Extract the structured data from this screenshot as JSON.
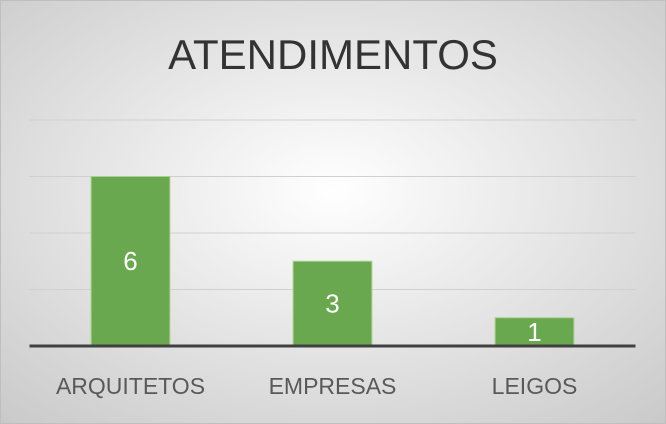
{
  "chart_data": {
    "type": "bar",
    "title": "ATENDIMENTOS",
    "categories": [
      "ARQUITETOS",
      "EMPRESAS",
      "LEIGOS"
    ],
    "values": [
      6,
      3,
      1
    ],
    "color": "#6aa84f",
    "ylim": [
      0,
      8
    ],
    "yticks": [
      0,
      2,
      4,
      6,
      8
    ],
    "grid": true
  }
}
